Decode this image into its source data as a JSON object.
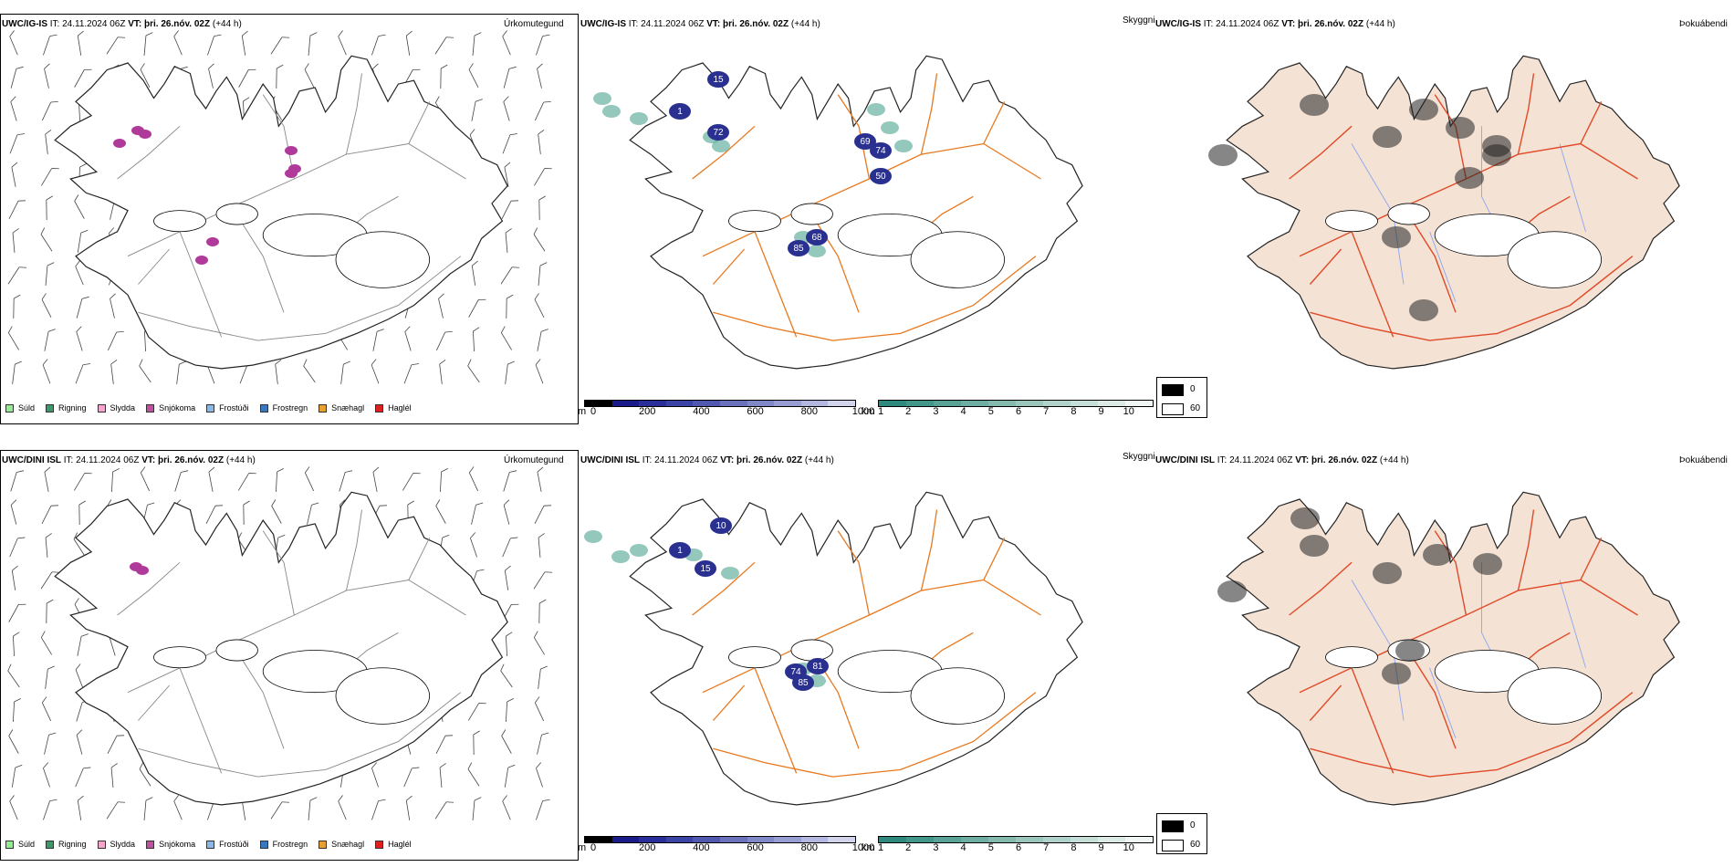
{
  "rows": [
    {
      "model": "UWC/IG-IS",
      "it_label": "IT:",
      "it_value": "24.11.2024 06Z",
      "vt_label": "VT:",
      "vt_value": "þri. 26.nóv. 02Z",
      "lead": "(+44 h)",
      "precip_marks": [
        [
          150,
          143
        ],
        [
          158,
          147
        ],
        [
          130,
          157
        ],
        [
          318,
          165
        ],
        [
          322,
          185
        ],
        [
          318,
          190
        ],
        [
          232,
          265
        ],
        [
          220,
          285
        ]
      ],
      "snow_marks": [
        [
          660,
          108
        ],
        [
          670,
          122
        ],
        [
          700,
          130
        ],
        [
          780,
          150
        ],
        [
          790,
          160
        ],
        [
          960,
          120
        ],
        [
          975,
          140
        ],
        [
          990,
          160
        ],
        [
          880,
          260
        ],
        [
          895,
          275
        ]
      ],
      "cloud_labels": [
        [
          "15",
          787,
          87
        ],
        [
          "72",
          787,
          145
        ],
        [
          "85",
          875,
          272
        ],
        [
          "68",
          895,
          260
        ],
        [
          "69",
          948,
          155
        ],
        [
          "74",
          965,
          165
        ],
        [
          "50",
          965,
          193
        ],
        [
          "1",
          745,
          122
        ]
      ],
      "fog_marks": [
        [
          1440,
          115
        ],
        [
          1520,
          150
        ],
        [
          1560,
          120
        ],
        [
          1600,
          140
        ],
        [
          1640,
          160
        ],
        [
          1530,
          260
        ],
        [
          1610,
          195
        ],
        [
          1640,
          170
        ],
        [
          1340,
          170
        ],
        [
          1560,
          340
        ]
      ]
    },
    {
      "model": "UWC/DINI ISL",
      "it_label": "IT:",
      "it_value": "24.11.2024 06Z",
      "vt_label": "VT:",
      "vt_value": "þri. 26.nóv. 02Z",
      "lead": "(+44 h)",
      "precip_marks": [
        [
          148,
          143
        ],
        [
          155,
          147
        ]
      ],
      "snow_marks": [
        [
          650,
          110
        ],
        [
          680,
          132
        ],
        [
          700,
          125
        ],
        [
          760,
          130
        ],
        [
          800,
          150
        ],
        [
          880,
          255
        ],
        [
          895,
          268
        ]
      ],
      "cloud_labels": [
        [
          "10",
          790,
          98
        ],
        [
          "15",
          773,
          145
        ],
        [
          "74",
          872,
          258
        ],
        [
          "81",
          896,
          252
        ],
        [
          "85",
          880,
          270
        ],
        [
          "1",
          745,
          125
        ]
      ],
      "fog_marks": [
        [
          1430,
          90
        ],
        [
          1440,
          120
        ],
        [
          1520,
          150
        ],
        [
          1575,
          130
        ],
        [
          1530,
          260
        ],
        [
          1545,
          235
        ],
        [
          1350,
          170
        ],
        [
          1630,
          140
        ]
      ]
    }
  ],
  "titles": {
    "precip": "Úrkomutegund",
    "visibility": "Skyggni",
    "fog": "Þokuábendi"
  },
  "precip_legend": [
    {
      "label": "Súld",
      "color": "#90ee90"
    },
    {
      "label": "Rigning",
      "color": "#3a9a6a"
    },
    {
      "label": "Slydda",
      "color": "#f4a6cc"
    },
    {
      "label": "Snjókoma",
      "color": "#c050a0"
    },
    {
      "label": "Frostúði",
      "color": "#8ab8e8"
    },
    {
      "label": "Frostregn",
      "color": "#3878c0"
    },
    {
      "label": "Snæhagl",
      "color": "#e8a030"
    },
    {
      "label": "Haglél",
      "color": "#e02020"
    }
  ],
  "cloud_base_bar": {
    "unit": "m",
    "ticks": [
      "0",
      "200",
      "400",
      "600",
      "800",
      "1000"
    ],
    "colors": [
      "#000000",
      "#1a1a8a",
      "#2a2e9a",
      "#3a44a6",
      "#5058b0",
      "#6a72bc",
      "#8088c8",
      "#989ed4",
      "#b4b8e0",
      "#d2d4ec"
    ]
  },
  "visibility_bar": {
    "unit": "km",
    "ticks": [
      "1",
      "2",
      "3",
      "4",
      "5",
      "6",
      "7",
      "8",
      "9",
      "10"
    ],
    "colors": [
      "#2e8a7e",
      "#43968a",
      "#58a296",
      "#6eaea2",
      "#84baae",
      "#9ac6bc",
      "#b0d2ca",
      "#c6ded8",
      "#dceae6",
      "#f0f6f4"
    ]
  },
  "fog_legend": [
    {
      "label": "0",
      "color": "#000000"
    },
    {
      "label": "60",
      "color": "#ffffff"
    }
  ],
  "colors": {
    "road": "#e8781e",
    "road_fog": "#e04a28",
    "land_fog": "#f4e2d4",
    "water": "#8aa6f0",
    "snowmark": "#b03a9a",
    "cloud": "#2a3090",
    "vis": "#5aaa98"
  }
}
